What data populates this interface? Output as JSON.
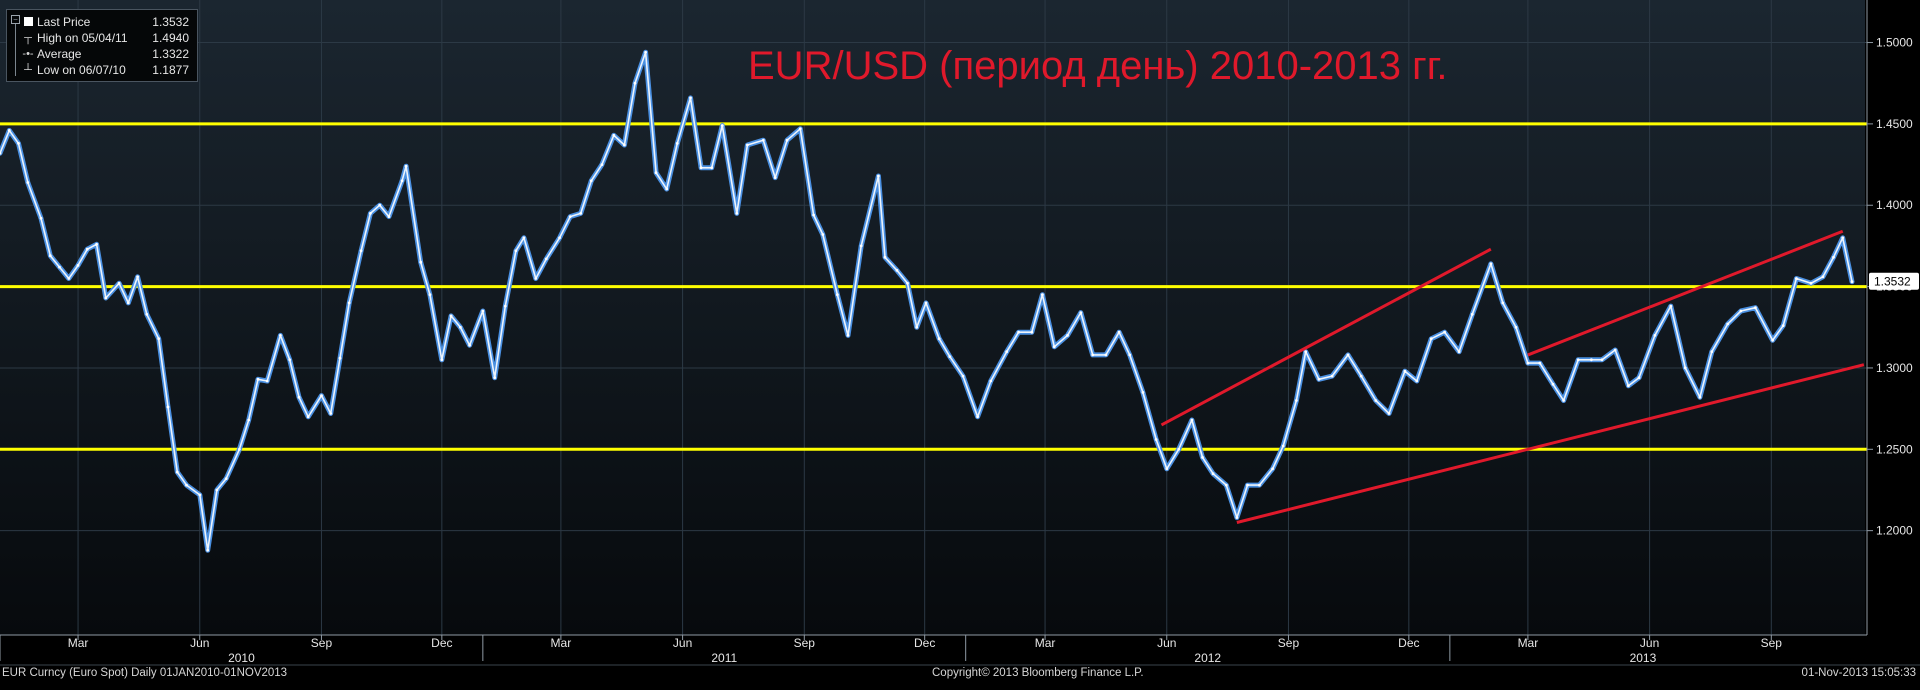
{
  "legend": {
    "items": [
      {
        "icon": "square-marker-icon",
        "label": "Last Price",
        "value": "1.3532"
      },
      {
        "icon": "high-marker-icon",
        "label": "High on 05/04/11",
        "value": "1.4940"
      },
      {
        "icon": "average-marker-icon",
        "label": "Average",
        "value": "1.3322"
      },
      {
        "icon": "low-marker-icon",
        "label": "Low on 06/07/10",
        "value": "1.1877"
      }
    ]
  },
  "footer": {
    "left": "EUR Curncy (Euro Spot)  Daily 01JAN2010-01NOV2013",
    "center": "Copyright© 2013 Bloomberg Finance L.P.",
    "right": "01-Nov-2013 15:05:33"
  },
  "last_price_tag": "1.3532",
  "colors": {
    "background_top": "#1b2630",
    "background_bottom": "#070a0d",
    "price_line": "#4a90e2",
    "price_highlight": "#ffffff",
    "horizontal_levels": "#ffff00",
    "trend_lines": "#e0192b",
    "title": "#e0192b",
    "axis_text": "#e6e6e6"
  },
  "chart_data": {
    "type": "line",
    "title": "EUR/USD (период день) 2010-2013 гг.",
    "xlabel": "",
    "ylabel": "",
    "x_range": [
      "2010-01-01",
      "2013-11-01"
    ],
    "ylim": [
      1.15,
      1.52
    ],
    "y_ticks": [
      "1.2000",
      "1.2500",
      "1.3000",
      "1.3500",
      "1.4000",
      "1.4500",
      "1.5000"
    ],
    "x_month_ticks": [
      {
        "label": "Mar",
        "date": "2010-03-01"
      },
      {
        "label": "Jun",
        "date": "2010-06-01"
      },
      {
        "label": "Sep",
        "date": "2010-09-01"
      },
      {
        "label": "Dec",
        "date": "2010-12-01"
      },
      {
        "label": "Mar",
        "date": "2011-03-01"
      },
      {
        "label": "Jun",
        "date": "2011-06-01"
      },
      {
        "label": "Sep",
        "date": "2011-09-01"
      },
      {
        "label": "Dec",
        "date": "2011-12-01"
      },
      {
        "label": "Mar",
        "date": "2012-03-01"
      },
      {
        "label": "Jun",
        "date": "2012-06-01"
      },
      {
        "label": "Sep",
        "date": "2012-09-01"
      },
      {
        "label": "Dec",
        "date": "2012-12-01"
      },
      {
        "label": "Mar",
        "date": "2013-03-01"
      },
      {
        "label": "Jun",
        "date": "2013-06-01"
      },
      {
        "label": "Sep",
        "date": "2013-09-01"
      }
    ],
    "x_year_ticks": [
      {
        "label": "2010",
        "date": "2010-01-01"
      },
      {
        "label": "2011",
        "date": "2011-01-01"
      },
      {
        "label": "2012",
        "date": "2012-01-01"
      },
      {
        "label": "2013",
        "date": "2013-01-01"
      }
    ],
    "grid": true,
    "legend_position": "top-left",
    "series": [
      {
        "name": "Last Price",
        "points": [
          [
            "2010-01-01",
            1.432
          ],
          [
            "2010-01-08",
            1.446
          ],
          [
            "2010-01-15",
            1.438
          ],
          [
            "2010-01-22",
            1.414
          ],
          [
            "2010-02-01",
            1.392
          ],
          [
            "2010-02-08",
            1.369
          ],
          [
            "2010-02-15",
            1.362
          ],
          [
            "2010-02-22",
            1.355
          ],
          [
            "2010-03-01",
            1.363
          ],
          [
            "2010-03-08",
            1.373
          ],
          [
            "2010-03-15",
            1.376
          ],
          [
            "2010-03-22",
            1.343
          ],
          [
            "2010-04-01",
            1.352
          ],
          [
            "2010-04-08",
            1.34
          ],
          [
            "2010-04-15",
            1.356
          ],
          [
            "2010-04-22",
            1.333
          ],
          [
            "2010-05-01",
            1.318
          ],
          [
            "2010-05-08",
            1.276
          ],
          [
            "2010-05-15",
            1.236
          ],
          [
            "2010-05-22",
            1.228
          ],
          [
            "2010-06-01",
            1.222
          ],
          [
            "2010-06-07",
            1.188
          ],
          [
            "2010-06-14",
            1.225
          ],
          [
            "2010-06-21",
            1.232
          ],
          [
            "2010-07-01",
            1.25
          ],
          [
            "2010-07-08",
            1.268
          ],
          [
            "2010-07-15",
            1.293
          ],
          [
            "2010-07-22",
            1.292
          ],
          [
            "2010-08-01",
            1.32
          ],
          [
            "2010-08-08",
            1.305
          ],
          [
            "2010-08-15",
            1.282
          ],
          [
            "2010-08-22",
            1.27
          ],
          [
            "2010-09-01",
            1.283
          ],
          [
            "2010-09-08",
            1.272
          ],
          [
            "2010-09-15",
            1.306
          ],
          [
            "2010-09-22",
            1.34
          ],
          [
            "2010-10-01",
            1.372
          ],
          [
            "2010-10-08",
            1.395
          ],
          [
            "2010-10-15",
            1.4
          ],
          [
            "2010-10-22",
            1.393
          ],
          [
            "2010-11-01",
            1.415
          ],
          [
            "2010-11-04",
            1.424
          ],
          [
            "2010-11-15",
            1.365
          ],
          [
            "2010-11-22",
            1.345
          ],
          [
            "2010-12-01",
            1.305
          ],
          [
            "2010-12-08",
            1.332
          ],
          [
            "2010-12-15",
            1.325
          ],
          [
            "2010-12-22",
            1.314
          ],
          [
            "2011-01-01",
            1.335
          ],
          [
            "2011-01-10",
            1.294
          ],
          [
            "2011-01-18",
            1.338
          ],
          [
            "2011-01-26",
            1.372
          ],
          [
            "2011-02-01",
            1.38
          ],
          [
            "2011-02-10",
            1.355
          ],
          [
            "2011-02-18",
            1.367
          ],
          [
            "2011-02-28",
            1.38
          ],
          [
            "2011-03-08",
            1.393
          ],
          [
            "2011-03-16",
            1.395
          ],
          [
            "2011-03-24",
            1.415
          ],
          [
            "2011-04-01",
            1.425
          ],
          [
            "2011-04-10",
            1.443
          ],
          [
            "2011-04-18",
            1.437
          ],
          [
            "2011-04-26",
            1.475
          ],
          [
            "2011-05-04",
            1.494
          ],
          [
            "2011-05-12",
            1.42
          ],
          [
            "2011-05-20",
            1.41
          ],
          [
            "2011-05-28",
            1.438
          ],
          [
            "2011-06-07",
            1.466
          ],
          [
            "2011-06-15",
            1.423
          ],
          [
            "2011-06-23",
            1.423
          ],
          [
            "2011-07-01",
            1.449
          ],
          [
            "2011-07-12",
            1.395
          ],
          [
            "2011-07-20",
            1.437
          ],
          [
            "2011-08-01",
            1.44
          ],
          [
            "2011-08-10",
            1.417
          ],
          [
            "2011-08-19",
            1.44
          ],
          [
            "2011-08-29",
            1.447
          ],
          [
            "2011-09-08",
            1.394
          ],
          [
            "2011-09-15",
            1.382
          ],
          [
            "2011-09-26",
            1.345
          ],
          [
            "2011-10-04",
            1.32
          ],
          [
            "2011-10-14",
            1.375
          ],
          [
            "2011-10-27",
            1.418
          ],
          [
            "2011-11-01",
            1.368
          ],
          [
            "2011-11-10",
            1.36
          ],
          [
            "2011-11-18",
            1.352
          ],
          [
            "2011-11-25",
            1.325
          ],
          [
            "2011-12-02",
            1.34
          ],
          [
            "2011-12-12",
            1.318
          ],
          [
            "2011-12-20",
            1.307
          ],
          [
            "2011-12-30",
            1.295
          ],
          [
            "2012-01-10",
            1.27
          ],
          [
            "2012-01-20",
            1.292
          ],
          [
            "2012-02-01",
            1.31
          ],
          [
            "2012-02-10",
            1.322
          ],
          [
            "2012-02-20",
            1.322
          ],
          [
            "2012-02-28",
            1.345
          ],
          [
            "2012-03-08",
            1.313
          ],
          [
            "2012-03-18",
            1.32
          ],
          [
            "2012-03-28",
            1.334
          ],
          [
            "2012-04-06",
            1.308
          ],
          [
            "2012-04-16",
            1.308
          ],
          [
            "2012-04-26",
            1.322
          ],
          [
            "2012-05-04",
            1.308
          ],
          [
            "2012-05-14",
            1.285
          ],
          [
            "2012-05-24",
            1.256
          ],
          [
            "2012-06-01",
            1.238
          ],
          [
            "2012-06-10",
            1.25
          ],
          [
            "2012-06-20",
            1.268
          ],
          [
            "2012-06-28",
            1.245
          ],
          [
            "2012-07-06",
            1.235
          ],
          [
            "2012-07-16",
            1.228
          ],
          [
            "2012-07-24",
            1.208
          ],
          [
            "2012-08-01",
            1.228
          ],
          [
            "2012-08-10",
            1.228
          ],
          [
            "2012-08-20",
            1.238
          ],
          [
            "2012-08-28",
            1.252
          ],
          [
            "2012-09-07",
            1.28
          ],
          [
            "2012-09-14",
            1.31
          ],
          [
            "2012-09-24",
            1.293
          ],
          [
            "2012-10-04",
            1.295
          ],
          [
            "2012-10-16",
            1.308
          ],
          [
            "2012-10-26",
            1.295
          ],
          [
            "2012-11-06",
            1.28
          ],
          [
            "2012-11-16",
            1.272
          ],
          [
            "2012-11-28",
            1.298
          ],
          [
            "2012-12-07",
            1.292
          ],
          [
            "2012-12-18",
            1.318
          ],
          [
            "2012-12-28",
            1.322
          ],
          [
            "2013-01-08",
            1.31
          ],
          [
            "2013-01-18",
            1.333
          ],
          [
            "2013-02-01",
            1.364
          ],
          [
            "2013-02-10",
            1.34
          ],
          [
            "2013-02-20",
            1.325
          ],
          [
            "2013-03-01",
            1.303
          ],
          [
            "2013-03-10",
            1.303
          ],
          [
            "2013-03-20",
            1.29
          ],
          [
            "2013-03-28",
            1.28
          ],
          [
            "2013-04-08",
            1.305
          ],
          [
            "2013-04-18",
            1.305
          ],
          [
            "2013-04-26",
            1.305
          ],
          [
            "2013-05-06",
            1.311
          ],
          [
            "2013-05-16",
            1.289
          ],
          [
            "2013-05-24",
            1.294
          ],
          [
            "2013-06-05",
            1.32
          ],
          [
            "2013-06-17",
            1.338
          ],
          [
            "2013-06-28",
            1.3
          ],
          [
            "2013-07-09",
            1.282
          ],
          [
            "2013-07-18",
            1.31
          ],
          [
            "2013-07-30",
            1.327
          ],
          [
            "2013-08-09",
            1.335
          ],
          [
            "2013-08-20",
            1.337
          ],
          [
            "2013-09-02",
            1.317
          ],
          [
            "2013-09-10",
            1.326
          ],
          [
            "2013-09-20",
            1.355
          ],
          [
            "2013-10-01",
            1.352
          ],
          [
            "2013-10-10",
            1.356
          ],
          [
            "2013-10-18",
            1.368
          ],
          [
            "2013-10-25",
            1.38
          ],
          [
            "2013-11-01",
            1.353
          ]
        ]
      }
    ],
    "horizontal_levels": [
      1.25,
      1.35,
      1.45
    ],
    "trend_lines": [
      {
        "start": [
          "2012-07-24",
          1.205
        ],
        "end": [
          "2013-11-10",
          1.302
        ]
      },
      {
        "start": [
          "2012-05-28",
          1.265
        ],
        "end": [
          "2013-02-01",
          1.373
        ]
      },
      {
        "start": [
          "2013-03-01",
          1.308
        ],
        "end": [
          "2013-10-25",
          1.384
        ]
      }
    ]
  }
}
